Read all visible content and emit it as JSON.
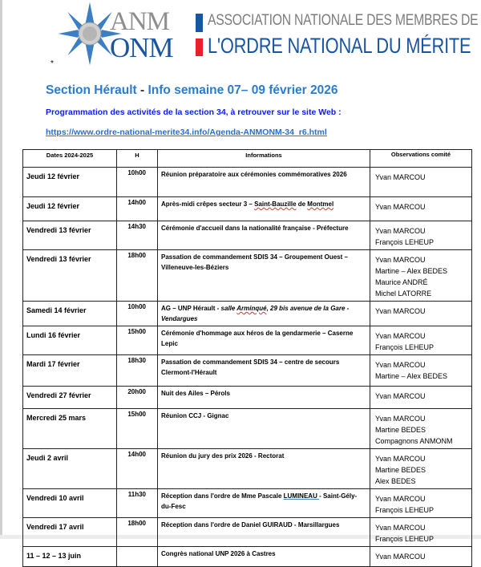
{
  "header": {
    "logo_anm": "ANM",
    "logo_onm": "ONM",
    "line1": "ASSOCIATION NATIONALE DES MEMBRES DE",
    "line2": "L'ORDRE NATIONAL DU MÉRITE",
    "bullet": "*",
    "brand_blue": "#1a55a0",
    "brand_red": "#e8202a"
  },
  "title": {
    "section": "Section Hérault",
    "dash": " - ",
    "info": "Info semaine 07– 09 février 2026"
  },
  "programme": "Programmation des activités de la section 34, à retrouver sur le site Web :",
  "link": "https://www.ordre-national-merite34.info/Agenda-ANMONM-34_r6.html",
  "table": {
    "headers": [
      "Dates 2024-2025",
      "H",
      "Informations",
      "Observations comité"
    ],
    "rows": [
      {
        "date": "Jeudi 12 février",
        "hour": "10h00",
        "info": [
          {
            "t": "Réunion préparatoire aux cérémonies commémoratives 2026"
          }
        ],
        "obs": [
          "Yvan MARCOU"
        ]
      },
      {
        "date": "Jeudi 12 février",
        "hour": "14h00",
        "info": [
          {
            "t": "Après-midi crêpes secteur 3 – "
          },
          {
            "t": "Saint-Bauzille",
            "s": "sq"
          },
          {
            "t": " de "
          },
          {
            "t": "Montmel",
            "s": "sq"
          }
        ],
        "obs": [
          "Yvan MARCOU"
        ]
      },
      {
        "date": "Vendredi 13 février",
        "hour": "14h30",
        "info": [
          {
            "t": "Cérémonie d'accueil dans la nationalité française - Préfecture"
          }
        ],
        "obs": [
          "Yvan MARCOU",
          "François LEHEUP"
        ]
      },
      {
        "date": "Vendredi 13 février",
        "hour": "18h00",
        "info": [
          {
            "t": "Passation de commandement SDIS 34 – Groupement Ouest – Villeneuve-les-Béziers"
          }
        ],
        "obs": [
          "Yvan MARCOU",
          "Martine – Alex BEDES",
          "Maurice ANDRÉ",
          "Michel LATORRE"
        ]
      },
      {
        "date": "Samedi 14 février",
        "hour": "10h00",
        "info": [
          {
            "t": "AG – UNP Hérault - "
          },
          {
            "t": "salle ",
            "s": "it"
          },
          {
            "t": "Arminqué",
            "s": "it sq"
          },
          {
            "t": ", 29 bis avenue de la Gare - Vendargues",
            "s": "it"
          }
        ],
        "obs": [
          "Yvan MARCOU"
        ]
      },
      {
        "date": "Lundi 16 février",
        "hour": "15h00",
        "info": [
          {
            "t": "Cérémonie d'hommage aux héros de la gendarmerie – Caserne Lepic"
          }
        ],
        "obs": [
          "Yvan MARCOU",
          "François LEHEUP"
        ]
      },
      {
        "date": "Mardi 17 février",
        "hour": "18h30",
        "info": [
          {
            "t": "Passation de commandement SDIS 34 – centre de secours Clermont-l'Hérault"
          }
        ],
        "obs": [
          "Yvan MARCOU",
          "Martine – Alex BEDES"
        ]
      },
      {
        "date": "Vendredi 27 février",
        "hour": "20h00",
        "info": [
          {
            "t": "Nuit des Ailes – Pérols"
          }
        ],
        "obs": [
          "Yvan MARCOU"
        ]
      },
      {
        "date": "Mercredi 25 mars",
        "hour": "15h00",
        "info": [
          {
            "t": "Réunion CCJ - Gignac"
          }
        ],
        "obs": [
          "Yvan MARCOU",
          "Martine BEDES",
          "Compagnons ANMONM"
        ]
      },
      {
        "date": "Jeudi 2 avril",
        "hour": "14h00",
        "info": [
          {
            "t": "Réunion du jury des prix 2026 - Rectorat"
          }
        ],
        "obs": [
          "Yvan MARCOU",
          "Martine BEDES",
          "Alex BEDES"
        ]
      },
      {
        "date": "Vendredi 10 avril",
        "hour": "11h30",
        "info": [
          {
            "t": "Réception dans l'ordre de Mme Pascale "
          },
          {
            "t": "LUMINEAU  ",
            "s": "ul"
          },
          {
            "t": "- Saint-Gély-du-Fesc"
          }
        ],
        "obs": [
          "Yvan MARCOU",
          "François LEHEUP"
        ]
      },
      {
        "date": "Vendredi 17 avril",
        "hour": "18h00",
        "info": [
          {
            "t": "Réception dans l'ordre de Daniel GUIRAUD - Marsillargues"
          }
        ],
        "obs": [
          "Yvan MARCOU",
          "François LEHEUP"
        ]
      },
      {
        "date": "11 – 12 – 13 juin",
        "hour": "",
        "info": [
          {
            "t": "Congrès national UNP 2026 à Castres"
          }
        ],
        "obs": [
          "Yvan MARCOU"
        ]
      }
    ]
  }
}
